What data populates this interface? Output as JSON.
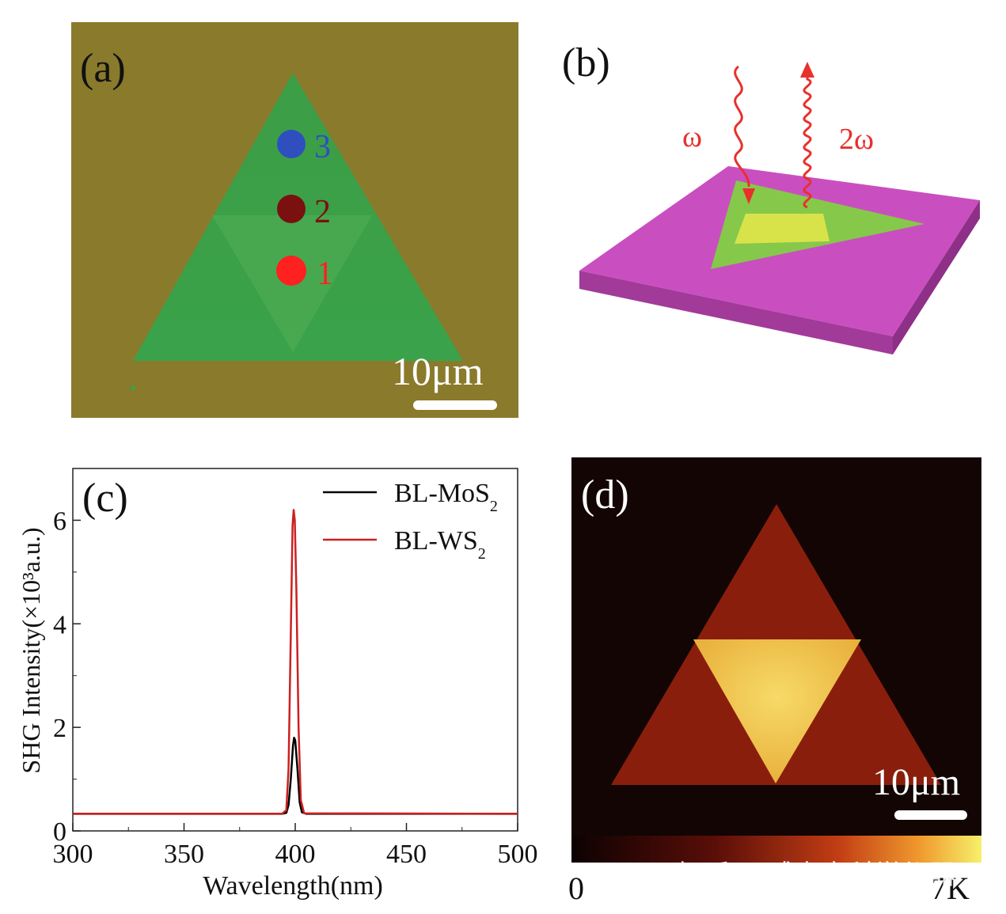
{
  "panels": {
    "a": {
      "label": "(a)",
      "spots": [
        {
          "label": "3",
          "color": "#2f4fbf"
        },
        {
          "label": "2",
          "color": "#7a1010"
        },
        {
          "label": "1",
          "color": "#ff2020"
        }
      ],
      "scalebar": "10μm",
      "colors": {
        "substrate": "#8a7a2c",
        "flake": "#3ea04c"
      }
    },
    "b": {
      "label": "(b)",
      "omega_label": "ω",
      "two_omega_label": "2ω",
      "colors": {
        "substrate": "#c94fc0",
        "flake": "#86c84a",
        "overlap": "#e6e84a",
        "beam": "#e8302c"
      }
    },
    "c": {
      "label": "(c)",
      "ylabel": "SHG Intensity(×10³a.u.)",
      "xlabel": "Wavelength(nm)"
    },
    "d": {
      "label": "(d)",
      "scalebar": "10μm",
      "colorbar_min": "0",
      "colorbar_max": "7K",
      "colors": {
        "background": "#120504",
        "monolayer": "#8a1e0c",
        "bilayer": "#f2c94e"
      }
    }
  },
  "watermark": "知乎 @威泰克科学仪器",
  "chart_data": {
    "type": "line",
    "xlabel": "Wavelength(nm)",
    "ylabel": "SHG Intensity(×10³a.u.)",
    "xlim": [
      300,
      500
    ],
    "ylim": [
      0,
      7
    ],
    "xticks": [
      "300",
      "350",
      "400",
      "450",
      "500"
    ],
    "yticks": [
      "0",
      "2",
      "4",
      "6"
    ],
    "legend_position": "top-right",
    "series": [
      {
        "name": "BL-MoS",
        "name_subscript": "2",
        "color": "#000000",
        "x": [
          300,
          394,
          396,
          397,
          398,
          399,
          399.5,
          400,
          401,
          402,
          403,
          405,
          500
        ],
        "y": [
          0.33,
          0.33,
          0.35,
          0.5,
          1.0,
          1.65,
          1.8,
          1.75,
          1.2,
          0.55,
          0.36,
          0.33,
          0.33
        ]
      },
      {
        "name": "BL-WS",
        "name_subscript": "2",
        "color": "#cc2020",
        "x": [
          300,
          394,
          396,
          397,
          398,
          398.8,
          399.3,
          399.8,
          400.5,
          401.5,
          402.5,
          404,
          500
        ],
        "y": [
          0.33,
          0.33,
          0.4,
          1.2,
          3.8,
          5.9,
          6.2,
          6.0,
          4.7,
          2.0,
          0.6,
          0.34,
          0.33
        ]
      }
    ]
  }
}
